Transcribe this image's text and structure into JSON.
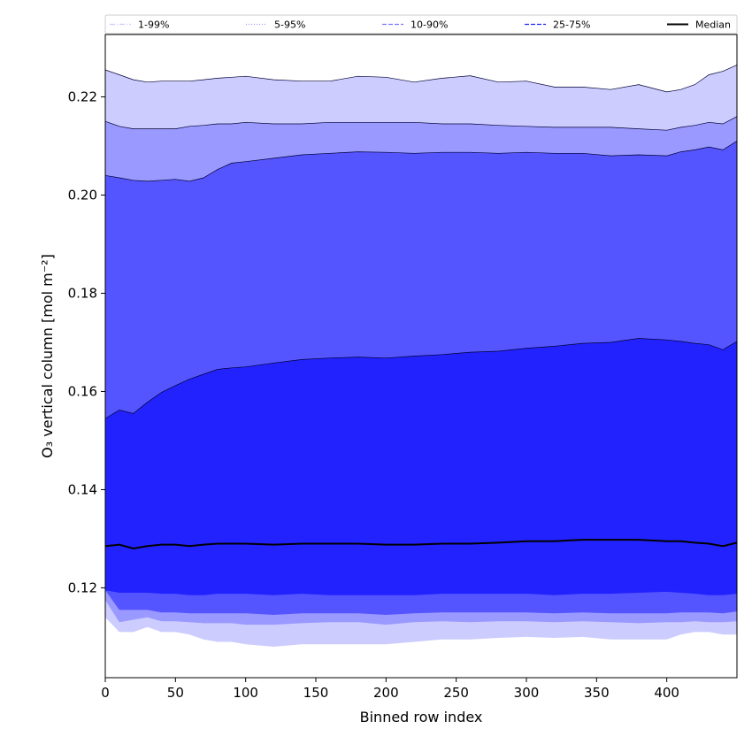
{
  "chart_data": {
    "type": "area",
    "xlabel": "Binned row index",
    "ylabel": "O₃ vertical column [mol m⁻²]",
    "xlim": [
      0,
      450
    ],
    "ylim": [
      0.1017,
      0.2327
    ],
    "x_ticks": [
      0,
      50,
      100,
      150,
      200,
      250,
      300,
      350,
      400
    ],
    "y_ticks": [
      0.12,
      0.14,
      0.16,
      0.18,
      0.2,
      0.22
    ],
    "y_tick_labels": [
      "0.12",
      "0.14",
      "0.16",
      "0.18",
      "0.20",
      "0.22"
    ],
    "grid": false,
    "legend_position": "top",
    "x": [
      0,
      10,
      20,
      30,
      40,
      50,
      60,
      70,
      80,
      90,
      100,
      120,
      140,
      160,
      180,
      200,
      220,
      240,
      260,
      280,
      300,
      320,
      340,
      360,
      380,
      400,
      410,
      420,
      430,
      440,
      450
    ],
    "bands": [
      {
        "name": "1-99%",
        "color": "#ccccff",
        "lower": [
          0.114,
          0.111,
          0.111,
          0.112,
          0.111,
          0.111,
          0.1105,
          0.1095,
          0.109,
          0.109,
          0.1085,
          0.108,
          0.1085,
          0.1085,
          0.1085,
          0.1085,
          0.109,
          0.1095,
          0.1095,
          0.1098,
          0.11,
          0.1098,
          0.11,
          0.1095,
          0.1095,
          0.1095,
          0.1105,
          0.111,
          0.111,
          0.1105,
          0.1105
        ],
        "upper": [
          0.2255,
          0.2245,
          0.2235,
          0.223,
          0.2232,
          0.2232,
          0.2232,
          0.2235,
          0.2238,
          0.224,
          0.2242,
          0.2235,
          0.2232,
          0.2232,
          0.2242,
          0.224,
          0.223,
          0.2238,
          0.2243,
          0.223,
          0.2232,
          0.222,
          0.222,
          0.2215,
          0.2225,
          0.221,
          0.2215,
          0.2225,
          0.2245,
          0.2252,
          0.2265
        ]
      },
      {
        "name": "5-95%",
        "color": "#9999ff",
        "lower": [
          0.1175,
          0.113,
          0.1135,
          0.114,
          0.1132,
          0.1132,
          0.113,
          0.1128,
          0.1128,
          0.1128,
          0.1125,
          0.1125,
          0.1128,
          0.113,
          0.113,
          0.1125,
          0.113,
          0.1132,
          0.113,
          0.1132,
          0.1132,
          0.113,
          0.1132,
          0.113,
          0.1128,
          0.113,
          0.113,
          0.1132,
          0.113,
          0.113,
          0.1132
        ],
        "upper": [
          0.215,
          0.214,
          0.2135,
          0.2135,
          0.2135,
          0.2135,
          0.214,
          0.2142,
          0.2145,
          0.2145,
          0.2148,
          0.2145,
          0.2145,
          0.2148,
          0.2148,
          0.2148,
          0.2148,
          0.2145,
          0.2145,
          0.2142,
          0.214,
          0.2138,
          0.2138,
          0.2138,
          0.2135,
          0.2132,
          0.2138,
          0.2142,
          0.2148,
          0.2145,
          0.216
        ]
      },
      {
        "name": "10-90%",
        "color": "#5555ff",
        "lower": [
          0.1195,
          0.1155,
          0.1155,
          0.1155,
          0.115,
          0.115,
          0.1148,
          0.1148,
          0.1148,
          0.1148,
          0.1148,
          0.1145,
          0.1148,
          0.1148,
          0.1148,
          0.1145,
          0.1148,
          0.115,
          0.115,
          0.115,
          0.115,
          0.1148,
          0.115,
          0.1148,
          0.1148,
          0.1148,
          0.115,
          0.115,
          0.115,
          0.1148,
          0.1152
        ],
        "upper": [
          0.204,
          0.2035,
          0.203,
          0.2028,
          0.203,
          0.2032,
          0.2028,
          0.2035,
          0.2052,
          0.2065,
          0.2068,
          0.2075,
          0.2082,
          0.2085,
          0.2088,
          0.2087,
          0.2085,
          0.2087,
          0.2087,
          0.2085,
          0.2087,
          0.2085,
          0.2085,
          0.208,
          0.2082,
          0.208,
          0.2088,
          0.2092,
          0.2098,
          0.2092,
          0.211
        ]
      },
      {
        "name": "25-75%",
        "color": "#2222ff",
        "lower": [
          0.1195,
          0.119,
          0.119,
          0.119,
          0.1188,
          0.1188,
          0.1185,
          0.1185,
          0.1188,
          0.1188,
          0.1188,
          0.1185,
          0.1188,
          0.1185,
          0.1185,
          0.1185,
          0.1185,
          0.1188,
          0.1188,
          0.1188,
          0.1188,
          0.1185,
          0.1188,
          0.1188,
          0.119,
          0.1192,
          0.119,
          0.1188,
          0.1185,
          0.1185,
          0.1188
        ],
        "upper": [
          0.1545,
          0.1562,
          0.1555,
          0.1578,
          0.1598,
          0.1612,
          0.1625,
          0.1635,
          0.1645,
          0.1648,
          0.165,
          0.1658,
          0.1665,
          0.1668,
          0.167,
          0.1668,
          0.1672,
          0.1675,
          0.168,
          0.1682,
          0.1688,
          0.1692,
          0.1698,
          0.17,
          0.1708,
          0.1705,
          0.1702,
          0.1698,
          0.1695,
          0.1685,
          0.1702
        ]
      }
    ],
    "series": [
      {
        "name": "Median",
        "color": "#000000",
        "values": [
          0.1285,
          0.1288,
          0.128,
          0.1285,
          0.1288,
          0.1288,
          0.1285,
          0.1288,
          0.129,
          0.129,
          0.129,
          0.1288,
          0.129,
          0.129,
          0.129,
          0.1288,
          0.1288,
          0.129,
          0.129,
          0.1292,
          0.1295,
          0.1295,
          0.1298,
          0.1298,
          0.1298,
          0.1295,
          0.1295,
          0.1292,
          0.129,
          0.1285,
          0.1292
        ]
      }
    ],
    "legend": [
      {
        "label": "1-99%",
        "style": "dashdot",
        "color": "#ccccff"
      },
      {
        "label": "5-95%",
        "style": "dotted",
        "color": "#9999ff"
      },
      {
        "label": "10-90%",
        "style": "dashed",
        "color": "#7777ff"
      },
      {
        "label": "25-75%",
        "style": "dashed",
        "color": "#2222ff"
      },
      {
        "label": "Median",
        "style": "solid",
        "color": "#000000"
      }
    ]
  }
}
